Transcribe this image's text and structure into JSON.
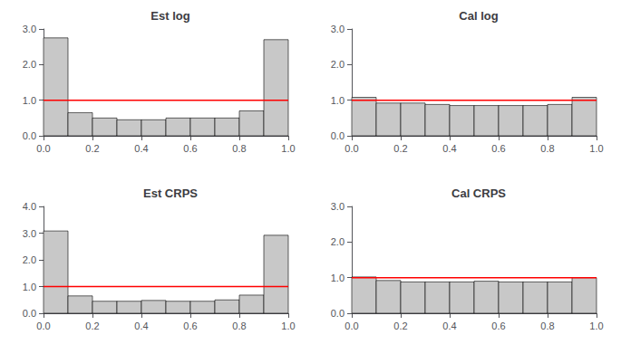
{
  "chart_data": [
    {
      "type": "histogram",
      "title": "Est log",
      "bins": [
        0.0,
        0.1,
        0.2,
        0.3,
        0.4,
        0.5,
        0.6,
        0.7,
        0.8,
        0.9,
        1.0
      ],
      "values": [
        2.75,
        0.65,
        0.5,
        0.45,
        0.45,
        0.5,
        0.5,
        0.5,
        0.7,
        2.7
      ],
      "color": "#c8c8c8",
      "xlim": [
        0.0,
        1.0
      ],
      "ylim": [
        0.0,
        3.0
      ],
      "xticks": [
        {
          "value": 0,
          "label": "0.0"
        },
        0.2,
        0.4,
        0.6,
        0.8,
        {
          "value": 1,
          "label": "1.0"
        }
      ],
      "yticks": [
        {
          "value": 0,
          "label": "0.0"
        },
        {
          "value": 1,
          "label": "1.0"
        },
        {
          "value": 2,
          "label": "2.0"
        },
        {
          "value": 3,
          "label": "3.0"
        }
      ],
      "grid": false,
      "ref_line_y": 1.0,
      "ref_line_color": "#ff0000"
    },
    {
      "type": "histogram",
      "title": "Cal log",
      "bins": [
        0.0,
        0.1,
        0.2,
        0.3,
        0.4,
        0.5,
        0.6,
        0.7,
        0.8,
        0.9,
        1.0
      ],
      "values": [
        1.08,
        0.92,
        0.92,
        0.88,
        0.85,
        0.85,
        0.85,
        0.85,
        0.88,
        1.08
      ],
      "color": "#c8c8c8",
      "xlim": [
        0.0,
        1.0
      ],
      "ylim": [
        0.0,
        3.0
      ],
      "xticks": [
        {
          "value": 0,
          "label": "0.0"
        },
        0.2,
        0.4,
        0.6,
        0.8,
        {
          "value": 1,
          "label": "1.0"
        }
      ],
      "yticks": [
        {
          "value": 0,
          "label": "0.0"
        },
        {
          "value": 1,
          "label": "1.0"
        },
        {
          "value": 2,
          "label": "2.0"
        },
        {
          "value": 3,
          "label": "3.0"
        }
      ],
      "grid": false,
      "ref_line_y": 1.0,
      "ref_line_color": "#ff0000"
    },
    {
      "type": "histogram",
      "title": "Est CRPS",
      "bins": [
        0.0,
        0.1,
        0.2,
        0.3,
        0.4,
        0.5,
        0.6,
        0.7,
        0.8,
        0.9,
        1.0
      ],
      "values": [
        3.08,
        0.65,
        0.45,
        0.45,
        0.48,
        0.45,
        0.45,
        0.5,
        0.68,
        2.92
      ],
      "color": "#c8c8c8",
      "xlim": [
        0.0,
        1.0
      ],
      "ylim": [
        0.0,
        4.0
      ],
      "xticks": [
        {
          "value": 0,
          "label": "0.0"
        },
        0.2,
        0.4,
        0.6,
        0.8,
        {
          "value": 1,
          "label": "1.0"
        }
      ],
      "yticks": [
        {
          "value": 0,
          "label": "0.0"
        },
        {
          "value": 1,
          "label": "1.0"
        },
        {
          "value": 2,
          "label": "2.0"
        },
        {
          "value": 3,
          "label": "3.0"
        },
        {
          "value": 4,
          "label": "4.0"
        }
      ],
      "grid": false,
      "ref_line_y": 1.0,
      "ref_line_color": "#ff0000"
    },
    {
      "type": "histogram",
      "title": "Cal CRPS",
      "bins": [
        0.0,
        0.1,
        0.2,
        0.3,
        0.4,
        0.5,
        0.6,
        0.7,
        0.8,
        0.9,
        1.0
      ],
      "values": [
        1.02,
        0.92,
        0.88,
        0.88,
        0.88,
        0.9,
        0.88,
        0.88,
        0.88,
        1.0
      ],
      "color": "#c8c8c8",
      "xlim": [
        0.0,
        1.0
      ],
      "ylim": [
        0.0,
        3.0
      ],
      "xticks": [
        {
          "value": 0,
          "label": "0.0"
        },
        0.2,
        0.4,
        0.6,
        0.8,
        {
          "value": 1,
          "label": "1.0"
        }
      ],
      "yticks": [
        {
          "value": 0,
          "label": "0.0"
        },
        {
          "value": 1,
          "label": "1.0"
        },
        {
          "value": 2,
          "label": "2.0"
        },
        {
          "value": 3,
          "label": "3.0"
        }
      ],
      "grid": false,
      "ref_line_y": 1.0,
      "ref_line_color": "#ff0000"
    }
  ]
}
